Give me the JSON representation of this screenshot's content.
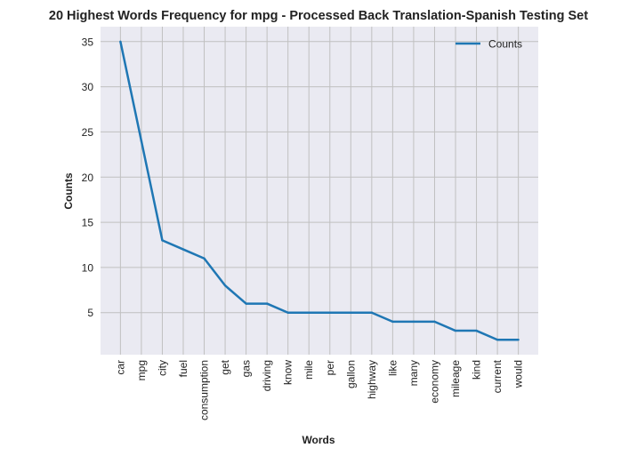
{
  "chart_data": {
    "type": "line",
    "title": "20 Highest Words Frequency for mpg - Processed Back Translation-Spanish Testing Set",
    "xlabel": "Words",
    "ylabel": "Counts",
    "categories": [
      "car",
      "mpg",
      "city",
      "fuel",
      "consumption",
      "get",
      "gas",
      "driving",
      "know",
      "mile",
      "per",
      "gallon",
      "highway",
      "like",
      "many",
      "economy",
      "mileage",
      "kind",
      "current",
      "would"
    ],
    "series": [
      {
        "name": "Counts",
        "values": [
          35,
          24,
          13,
          12,
          11,
          8,
          6,
          6,
          5,
          5,
          5,
          5,
          5,
          4,
          4,
          4,
          3,
          3,
          2,
          2
        ],
        "color": "#1f77b4"
      }
    ],
    "yticks": [
      5,
      10,
      15,
      20,
      25,
      30,
      35
    ],
    "ylim": [
      0.35,
      36.65
    ],
    "grid": true,
    "legend": "top-right",
    "plot_background": "#eaeaf2",
    "grid_color": "#c0c0c0"
  }
}
